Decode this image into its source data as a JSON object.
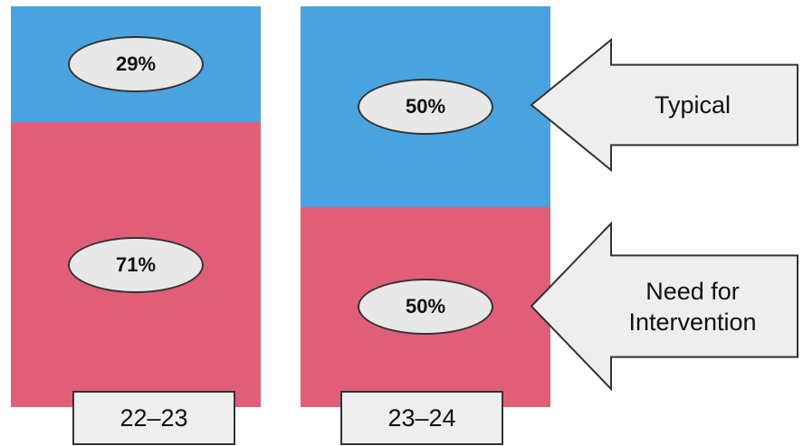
{
  "chart_data": {
    "type": "bar",
    "stacked": true,
    "categories": [
      "22–23",
      "23–24"
    ],
    "series": [
      {
        "name": "Typical",
        "values": [
          29,
          50
        ],
        "labels": [
          "29%",
          "50%"
        ],
        "color": "#4aa3df"
      },
      {
        "name": "Need for Intervention",
        "values": [
          71,
          50
        ],
        "labels": [
          "71%",
          "50%"
        ],
        "color": "#e15e78"
      }
    ],
    "ylim": [
      0,
      100
    ],
    "legend": "right, arrow callouts",
    "annotations": [
      {
        "text": "Typical",
        "series": "Typical"
      },
      {
        "text": "Need for\nIntervention",
        "series": "Need for Intervention"
      }
    ]
  }
}
